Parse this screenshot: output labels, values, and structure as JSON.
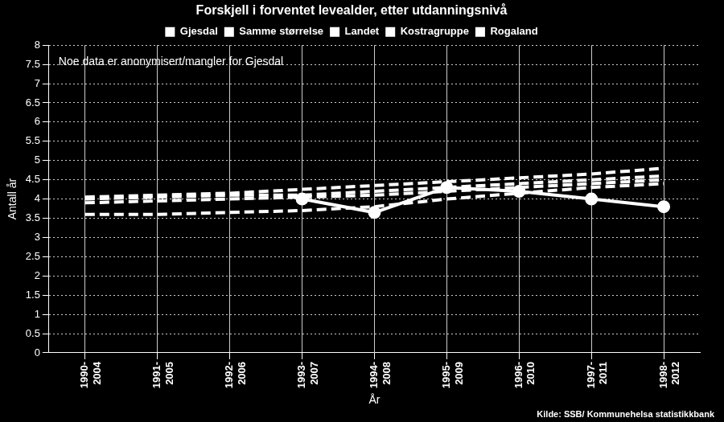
{
  "chart_data": {
    "type": "line",
    "title": "Forskjell i forventet levealder, etter utdanningsnivå",
    "annotation": "Noe data er anonymisert/mangler for Gjesdal",
    "source": "Kilde: SSB/ Kommunehelsa statistikkbank",
    "x_label": "År",
    "y_label": "Antall år",
    "categories": [
      "1990-2004",
      "1991-2005",
      "1992-2006",
      "1993-2007",
      "1994-2008",
      "1995-2009",
      "1996-2010",
      "1997-2011",
      "1998-2012"
    ],
    "series": [
      {
        "name": "Gjesdal",
        "color": "#ffffff",
        "line_style": "solid",
        "marker": "circle",
        "values": [
          null,
          null,
          null,
          4.0,
          3.65,
          4.3,
          4.2,
          4.0,
          3.8
        ]
      },
      {
        "name": "Samme størrelse",
        "color": "#ffffff",
        "line_style": "dashed",
        "marker": "none",
        "values": [
          3.6,
          3.6,
          3.65,
          3.7,
          3.8,
          4.0,
          4.15,
          4.3,
          4.4
        ]
      },
      {
        "name": "Landet",
        "color": "#ffffff",
        "line_style": "dashed",
        "marker": "none",
        "values": [
          4.05,
          4.1,
          4.15,
          4.25,
          4.35,
          4.45,
          4.55,
          4.65,
          4.8
        ]
      },
      {
        "name": "Kostragruppe",
        "color": "#ffffff",
        "line_style": "dashed",
        "marker": "none",
        "values": [
          3.9,
          3.95,
          4.0,
          4.05,
          4.1,
          4.2,
          4.3,
          4.4,
          4.5
        ]
      },
      {
        "name": "Rogaland",
        "color": "#ffffff",
        "line_style": "dashed",
        "marker": "none",
        "values": [
          4.0,
          4.05,
          4.1,
          4.1,
          4.2,
          4.3,
          4.4,
          4.5,
          4.6
        ]
      }
    ],
    "ylim": [
      0,
      8
    ],
    "yticks": [
      0,
      0.5,
      1,
      1.5,
      2,
      2.5,
      3,
      3.5,
      4,
      4.5,
      5,
      5.5,
      6,
      6.5,
      7,
      7.5,
      8
    ],
    "grid": true,
    "legend": "top"
  }
}
